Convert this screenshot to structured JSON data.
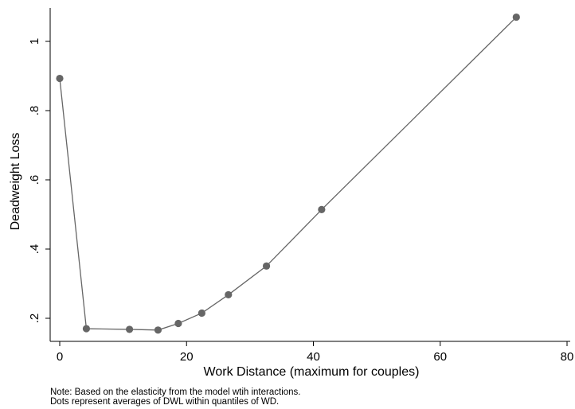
{
  "chart_data": {
    "type": "line",
    "xlabel": "Work Distance (maximum for couples)",
    "ylabel": "Deadweight Loss",
    "xlim": [
      0,
      80
    ],
    "ylim": [
      0.15,
      1.1
    ],
    "xticks": [
      0,
      20,
      40,
      60,
      80
    ],
    "xtick_labels": [
      "0",
      "20",
      "40",
      "60",
      "80"
    ],
    "yticks": [
      0.2,
      0.4,
      0.6,
      0.8,
      1.0
    ],
    "ytick_labels": [
      ".2",
      ".4",
      ".6",
      ".8",
      "1"
    ],
    "grid": false,
    "legend": "none",
    "series": [
      {
        "x": [
          0,
          4.2,
          11,
          15.5,
          18.7,
          22.4,
          26.6,
          32.6,
          41.3,
          72
        ],
        "y": [
          0.893,
          0.17,
          0.168,
          0.166,
          0.185,
          0.215,
          0.268,
          0.351,
          0.514,
          1.07
        ],
        "color": "#666666",
        "marker": "circle"
      }
    ]
  },
  "notes": [
    "Note: Based on the elasticity from the model wtih interactions.",
    "Dots represent averages of DWL within quantiles of WD."
  ]
}
